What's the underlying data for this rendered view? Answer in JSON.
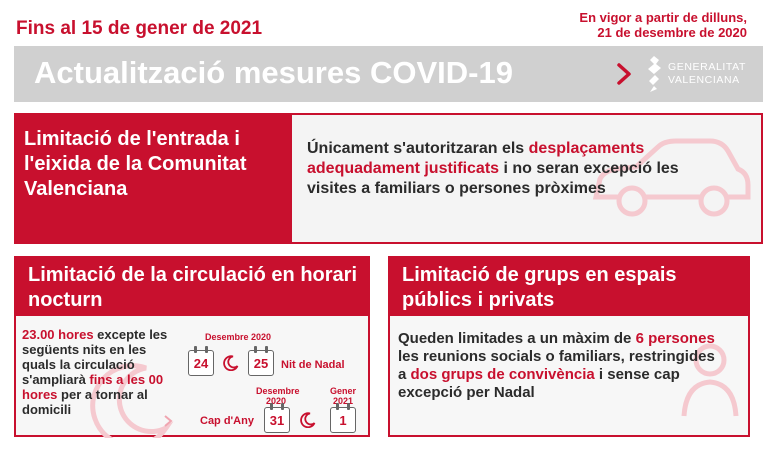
{
  "header": {
    "date_label": "Fins al 15 de gener de 2021",
    "effective_line1": "En vigor a partir de dilluns,",
    "effective_line2": "21 de desembre de 2020",
    "title": "Actualització mesures COVID-19",
    "logo_line1": "GENERALITAT",
    "logo_line2": "VALENCIANA"
  },
  "panel_entry": {
    "heading": "Limitació de l'entrada i l'eixida de la Comunitat Valenciana",
    "text_part1": "Únicament s'autoritzaran els ",
    "text_highlight": "desplaçaments adequadament justificats",
    "text_part2": " i no seran excepció les visites a familiars o persones pròximes",
    "icon": "car-icon"
  },
  "panel_night": {
    "heading": "Limitació de la circulació en horari nocturn",
    "text_highlight1": "23.00 hores",
    "text_part1": " excepte les següents nits en les quals la circulació s'ampliarà ",
    "text_highlight2": "fins a les 00 hores",
    "text_part2": " per a tornar al domicili",
    "calendar": {
      "month1": "Desembre 2020",
      "day1": "24",
      "day2": "25",
      "event1": "Nit de Nadal",
      "month2": "Desembre 2020",
      "day3": "31",
      "month3": "Gener 2021",
      "day4": "1",
      "event2": "Cap d'Any"
    }
  },
  "panel_groups": {
    "heading": "Limitació de grups en espais públics i privats",
    "text_part1": "Queden limitades a un màxim de ",
    "text_highlight1": "6 persones",
    "text_part2": " les reunions socials o familiars, restringides a ",
    "text_highlight2": "dos grups de convivència",
    "text_part3": " i sense cap excepció per Nadal",
    "icon": "people-icon"
  },
  "colors": {
    "accent": "#c8102e",
    "title_bar": "#d0d0d0",
    "text": "#2b2b2b"
  }
}
